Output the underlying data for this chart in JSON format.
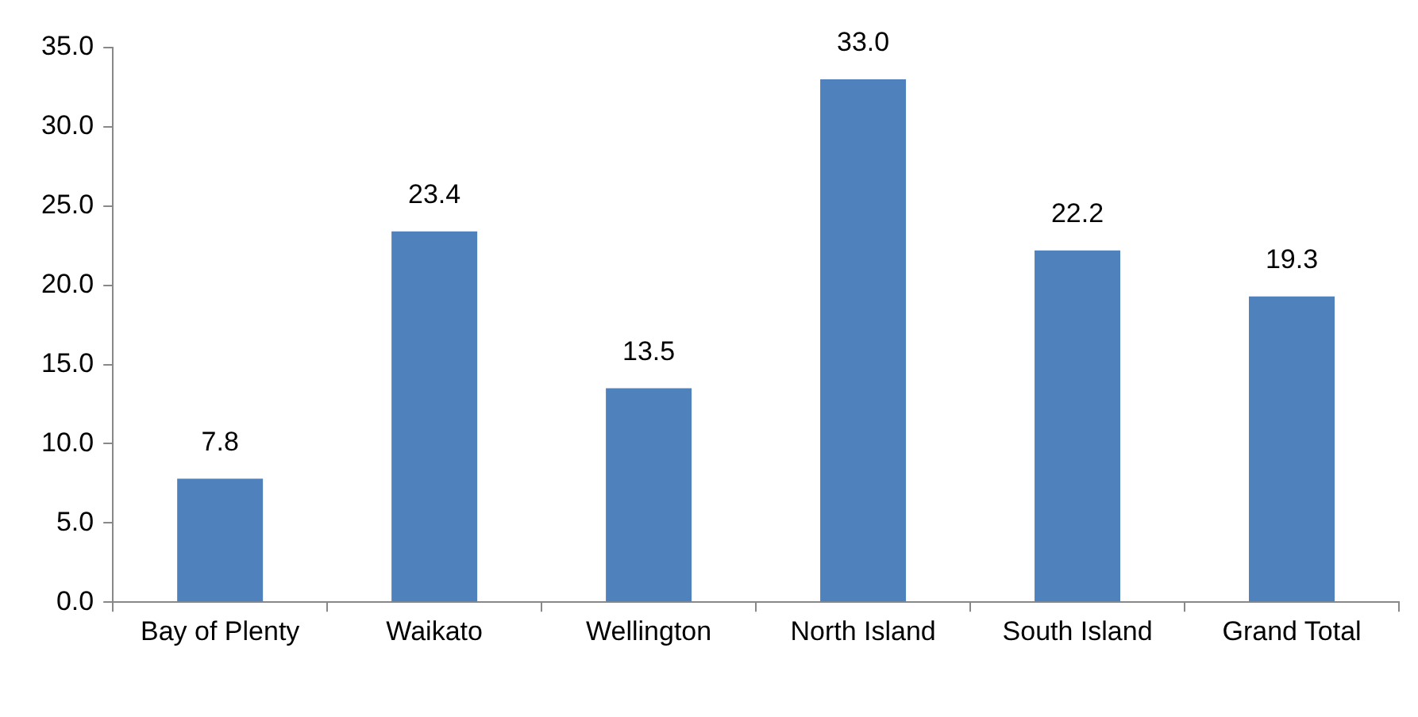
{
  "chart_data": {
    "type": "bar",
    "categories": [
      "Bay of Plenty",
      "Waikato",
      "Wellington",
      "North Island",
      "South Island",
      "Grand Total"
    ],
    "values": [
      7.8,
      23.4,
      13.5,
      33.0,
      22.2,
      19.3
    ],
    "value_labels": [
      "7.8",
      "23.4",
      "13.5",
      "33.0",
      "22.2",
      "19.3"
    ],
    "color": "#4f81bd",
    "grid": false,
    "legend": false,
    "ylim": [
      0,
      35
    ],
    "yticks": [
      {
        "value": 0,
        "label": "0.0"
      },
      {
        "value": 5,
        "label": "5.0"
      },
      {
        "value": 10,
        "label": "10.0"
      },
      {
        "value": 15,
        "label": "15.0"
      },
      {
        "value": 20,
        "label": "20.0"
      },
      {
        "value": 25,
        "label": "25.0"
      },
      {
        "value": 30,
        "label": "30.0"
      },
      {
        "value": 35,
        "label": "35.0"
      }
    ]
  }
}
